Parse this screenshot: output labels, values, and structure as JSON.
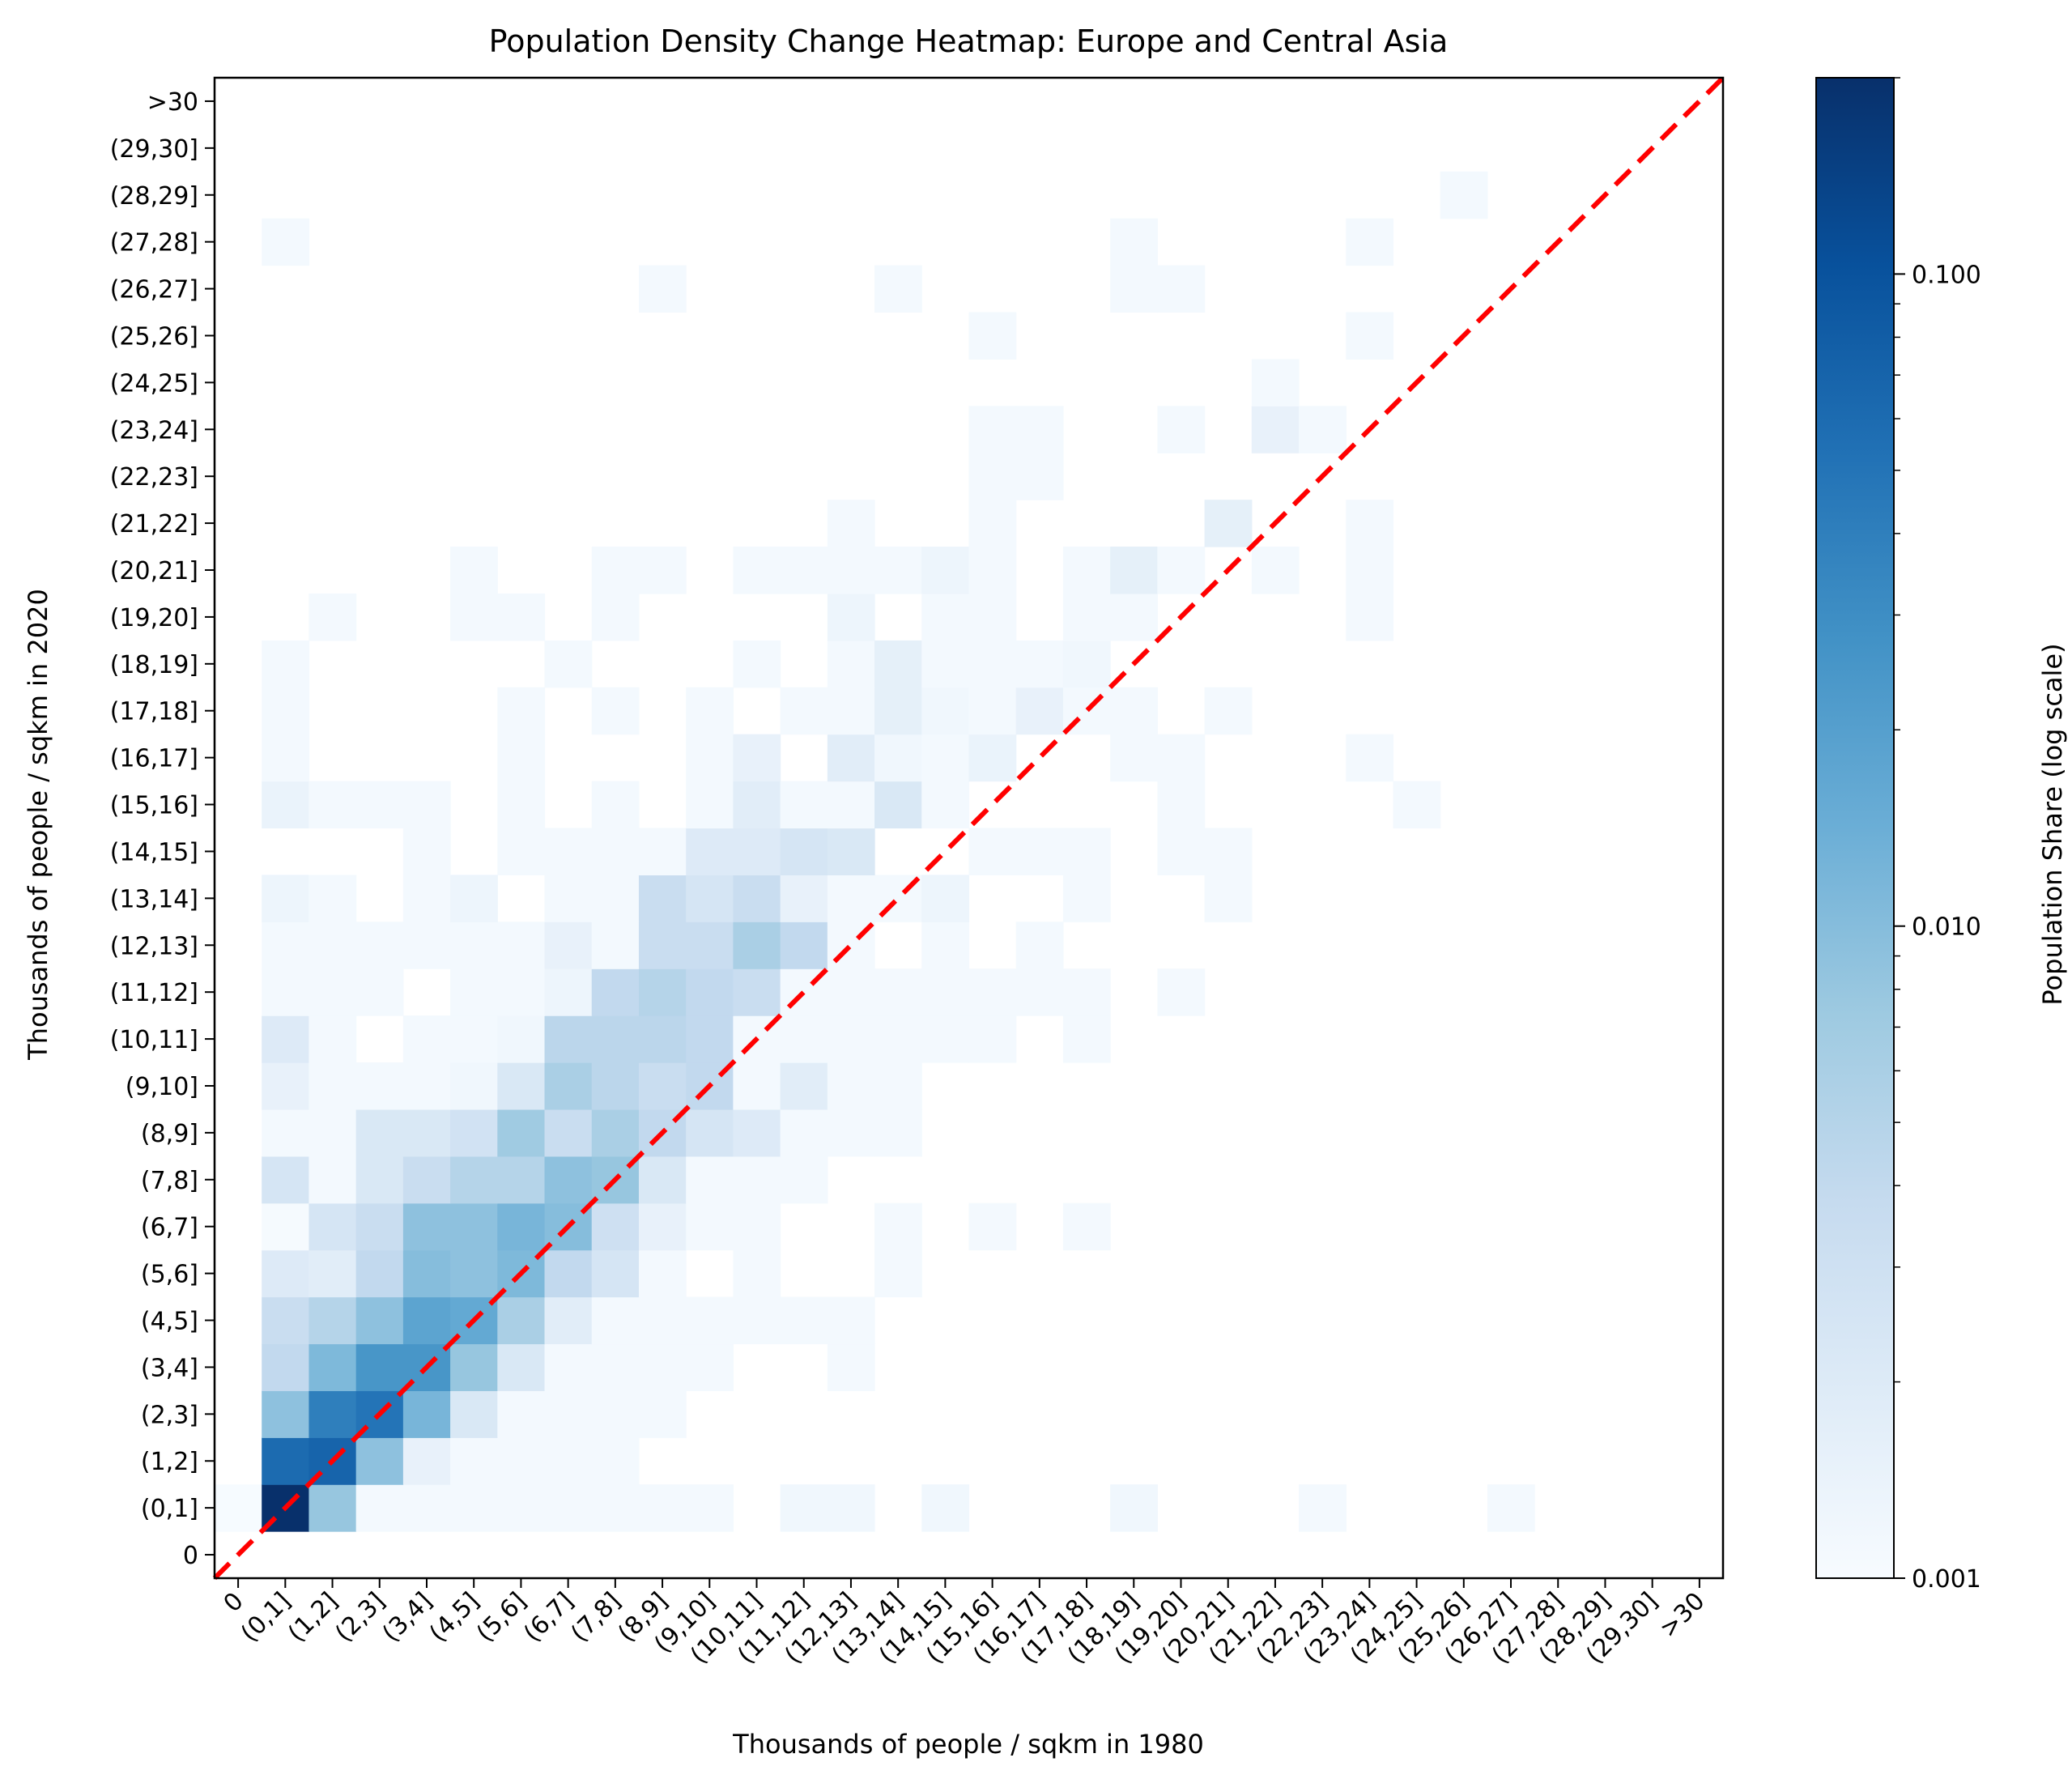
{
  "chart_data": {
    "type": "heatmap",
    "title": "Population Density Change Heatmap: Europe and Central Asia",
    "xlabel": "Thousands of people / sqkm in 1980",
    "ylabel": "Thousands of people / sqkm in 2020",
    "categories": [
      "0",
      "(0,1]",
      "(1,2]",
      "(2,3]",
      "(3,4]",
      "(4,5]",
      "(5,6]",
      "(6,7]",
      "(7,8]",
      "(8,9]",
      "(9,10]",
      "(10,11]",
      "(11,12]",
      "(12,13]",
      "(13,14]",
      "(14,15]",
      "(15,16]",
      "(16,17]",
      "(17,18]",
      "(18,19]",
      "(19,20]",
      "(20,21]",
      "(21,22]",
      "(22,23]",
      "(23,24]",
      "(24,25]",
      "(25,26]",
      "(26,27]",
      "(27,28]",
      "(28,29]",
      "(29,30]",
      ">30"
    ],
    "colorbar": {
      "label": "Population Share (log scale)",
      "scale": "log",
      "range": [
        0.001,
        0.2
      ],
      "ticks": [
        0.001,
        0.01,
        0.1
      ],
      "tick_labels": [
        "0.001",
        "0.010",
        "0.100"
      ],
      "colormap": "Blues"
    },
    "cells": [
      [
        0,
        1,
        0.00102
      ],
      [
        1,
        1,
        0.2
      ],
      [
        2,
        1,
        0.008
      ],
      [
        3,
        1,
        0.0011
      ],
      [
        4,
        1,
        0.0011
      ],
      [
        5,
        1,
        0.0011
      ],
      [
        6,
        1,
        0.0011
      ],
      [
        7,
        1,
        0.0011
      ],
      [
        8,
        1,
        0.0011
      ],
      [
        9,
        1,
        0.0011
      ],
      [
        10,
        1,
        0.0011
      ],
      [
        12,
        1,
        0.0012
      ],
      [
        13,
        1,
        0.0012
      ],
      [
        15,
        1,
        0.0012
      ],
      [
        19,
        1,
        0.0012
      ],
      [
        23,
        1,
        0.0011
      ],
      [
        27,
        1,
        0.0011
      ],
      [
        1,
        2,
        0.06
      ],
      [
        2,
        2,
        0.07
      ],
      [
        3,
        2,
        0.009
      ],
      [
        4,
        2,
        0.0015
      ],
      [
        5,
        2,
        0.0011
      ],
      [
        6,
        2,
        0.0011
      ],
      [
        7,
        2,
        0.0011
      ],
      [
        8,
        2,
        0.0011
      ],
      [
        1,
        3,
        0.009
      ],
      [
        2,
        3,
        0.04
      ],
      [
        3,
        3,
        0.05
      ],
      [
        4,
        3,
        0.012
      ],
      [
        5,
        3,
        0.0022
      ],
      [
        6,
        3,
        0.0011
      ],
      [
        7,
        3,
        0.0011
      ],
      [
        8,
        3,
        0.0011
      ],
      [
        9,
        3,
        0.0011
      ],
      [
        1,
        4,
        0.004
      ],
      [
        2,
        4,
        0.011
      ],
      [
        3,
        4,
        0.025
      ],
      [
        4,
        4,
        0.025
      ],
      [
        5,
        4,
        0.008
      ],
      [
        6,
        4,
        0.0022
      ],
      [
        7,
        4,
        0.0011
      ],
      [
        8,
        4,
        0.0011
      ],
      [
        9,
        4,
        0.0011
      ],
      [
        10,
        4,
        0.0011
      ],
      [
        13,
        4,
        0.0011
      ],
      [
        1,
        5,
        0.0035
      ],
      [
        2,
        5,
        0.005
      ],
      [
        3,
        5,
        0.009
      ],
      [
        4,
        5,
        0.018
      ],
      [
        5,
        5,
        0.016
      ],
      [
        6,
        5,
        0.006
      ],
      [
        7,
        5,
        0.0018
      ],
      [
        8,
        5,
        0.0011
      ],
      [
        9,
        5,
        0.0011
      ],
      [
        10,
        5,
        0.0011
      ],
      [
        11,
        5,
        0.0011
      ],
      [
        12,
        5,
        0.0011
      ],
      [
        13,
        5,
        0.0011
      ],
      [
        1,
        6,
        0.002
      ],
      [
        2,
        6,
        0.0018
      ],
      [
        3,
        6,
        0.004
      ],
      [
        4,
        6,
        0.01
      ],
      [
        5,
        6,
        0.009
      ],
      [
        6,
        6,
        0.011
      ],
      [
        7,
        6,
        0.004
      ],
      [
        8,
        6,
        0.0025
      ],
      [
        9,
        6,
        0.0011
      ],
      [
        11,
        6,
        0.0011
      ],
      [
        14,
        6,
        0.0011
      ],
      [
        1,
        7,
        0.00105
      ],
      [
        2,
        7,
        0.0025
      ],
      [
        3,
        7,
        0.0035
      ],
      [
        4,
        7,
        0.009
      ],
      [
        5,
        7,
        0.009
      ],
      [
        6,
        7,
        0.012
      ],
      [
        7,
        7,
        0.01
      ],
      [
        8,
        7,
        0.003
      ],
      [
        9,
        7,
        0.0015
      ],
      [
        10,
        7,
        0.0011
      ],
      [
        11,
        7,
        0.0011
      ],
      [
        14,
        7,
        0.0011
      ],
      [
        16,
        7,
        0.0011
      ],
      [
        18,
        7,
        0.0011
      ],
      [
        1,
        8,
        0.0025
      ],
      [
        2,
        8,
        0.0011
      ],
      [
        3,
        8,
        0.0022
      ],
      [
        4,
        8,
        0.0035
      ],
      [
        5,
        8,
        0.005
      ],
      [
        6,
        8,
        0.005
      ],
      [
        7,
        8,
        0.009
      ],
      [
        8,
        8,
        0.008
      ],
      [
        9,
        8,
        0.0022
      ],
      [
        10,
        8,
        0.0011
      ],
      [
        11,
        8,
        0.0011
      ],
      [
        12,
        8,
        0.0011
      ],
      [
        1,
        9,
        0.0011
      ],
      [
        2,
        9,
        0.0011
      ],
      [
        3,
        9,
        0.0022
      ],
      [
        4,
        9,
        0.0022
      ],
      [
        5,
        9,
        0.0028
      ],
      [
        6,
        9,
        0.007
      ],
      [
        7,
        9,
        0.0035
      ],
      [
        8,
        9,
        0.006
      ],
      [
        9,
        9,
        0.004
      ],
      [
        10,
        9,
        0.0025
      ],
      [
        11,
        9,
        0.002
      ],
      [
        12,
        9,
        0.0011
      ],
      [
        13,
        9,
        0.0011
      ],
      [
        14,
        9,
        0.0011
      ],
      [
        1,
        10,
        0.0015
      ],
      [
        2,
        10,
        0.0011
      ],
      [
        3,
        10,
        0.0011
      ],
      [
        4,
        10,
        0.0011
      ],
      [
        5,
        10,
        0.0012
      ],
      [
        6,
        10,
        0.0022
      ],
      [
        7,
        10,
        0.006
      ],
      [
        8,
        10,
        0.0045
      ],
      [
        9,
        10,
        0.0035
      ],
      [
        10,
        10,
        0.004
      ],
      [
        11,
        10,
        0.0011
      ],
      [
        12,
        10,
        0.0018
      ],
      [
        13,
        10,
        0.0011
      ],
      [
        14,
        10,
        0.0011
      ],
      [
        1,
        11,
        0.002
      ],
      [
        2,
        11,
        0.0011
      ],
      [
        4,
        11,
        0.0011
      ],
      [
        5,
        11,
        0.0011
      ],
      [
        6,
        11,
        0.0012
      ],
      [
        7,
        11,
        0.0045
      ],
      [
        8,
        11,
        0.0045
      ],
      [
        9,
        11,
        0.0045
      ],
      [
        10,
        11,
        0.004
      ],
      [
        11,
        11,
        0.0011
      ],
      [
        12,
        11,
        0.0011
      ],
      [
        13,
        11,
        0.0011
      ],
      [
        14,
        11,
        0.0011
      ],
      [
        15,
        11,
        0.0011
      ],
      [
        16,
        11,
        0.0011
      ],
      [
        18,
        11,
        0.0011
      ],
      [
        1,
        12,
        0.0011
      ],
      [
        2,
        12,
        0.0011
      ],
      [
        3,
        12,
        0.0011
      ],
      [
        5,
        12,
        0.0011
      ],
      [
        6,
        12,
        0.0011
      ],
      [
        7,
        12,
        0.0013
      ],
      [
        8,
        12,
        0.004
      ],
      [
        9,
        12,
        0.005
      ],
      [
        10,
        12,
        0.004
      ],
      [
        11,
        12,
        0.0035
      ],
      [
        12,
        12,
        0.0011
      ],
      [
        13,
        12,
        0.0011
      ],
      [
        14,
        12,
        0.0011
      ],
      [
        15,
        12,
        0.0011
      ],
      [
        16,
        12,
        0.0011
      ],
      [
        17,
        12,
        0.0011
      ],
      [
        18,
        12,
        0.0011
      ],
      [
        20,
        12,
        0.0011
      ],
      [
        1,
        13,
        0.0011
      ],
      [
        2,
        13,
        0.0011
      ],
      [
        3,
        13,
        0.0011
      ],
      [
        4,
        13,
        0.0011
      ],
      [
        5,
        13,
        0.0011
      ],
      [
        6,
        13,
        0.0011
      ],
      [
        7,
        13,
        0.0015
      ],
      [
        8,
        13,
        0.0011
      ],
      [
        9,
        13,
        0.0035
      ],
      [
        10,
        13,
        0.0035
      ],
      [
        11,
        13,
        0.006
      ],
      [
        12,
        13,
        0.004
      ],
      [
        13,
        13,
        0.0011
      ],
      [
        15,
        13,
        0.0011
      ],
      [
        17,
        13,
        0.0011
      ],
      [
        1,
        14,
        0.0013
      ],
      [
        2,
        14,
        0.0011
      ],
      [
        4,
        14,
        0.0011
      ],
      [
        5,
        14,
        0.0013
      ],
      [
        7,
        14,
        0.0011
      ],
      [
        8,
        14,
        0.0011
      ],
      [
        9,
        14,
        0.0035
      ],
      [
        10,
        14,
        0.0025
      ],
      [
        11,
        14,
        0.0035
      ],
      [
        12,
        14,
        0.0015
      ],
      [
        13,
        14,
        0.0011
      ],
      [
        14,
        14,
        0.0011
      ],
      [
        15,
        14,
        0.0013
      ],
      [
        18,
        14,
        0.0011
      ],
      [
        21,
        14,
        0.0011
      ],
      [
        4,
        15,
        0.0011
      ],
      [
        6,
        15,
        0.0011
      ],
      [
        7,
        15,
        0.0011
      ],
      [
        8,
        15,
        0.0011
      ],
      [
        9,
        15,
        0.0011
      ],
      [
        10,
        15,
        0.002
      ],
      [
        11,
        15,
        0.002
      ],
      [
        12,
        15,
        0.0025
      ],
      [
        13,
        15,
        0.0022
      ],
      [
        16,
        15,
        0.0011
      ],
      [
        17,
        15,
        0.0011
      ],
      [
        18,
        15,
        0.0011
      ],
      [
        20,
        15,
        0.0011
      ],
      [
        21,
        15,
        0.0011
      ],
      [
        1,
        16,
        0.0014
      ],
      [
        2,
        16,
        0.0011
      ],
      [
        3,
        16,
        0.0011
      ],
      [
        4,
        16,
        0.0011
      ],
      [
        6,
        16,
        0.0011
      ],
      [
        8,
        16,
        0.0011
      ],
      [
        10,
        16,
        0.0011
      ],
      [
        11,
        16,
        0.0018
      ],
      [
        12,
        16,
        0.0011
      ],
      [
        13,
        16,
        0.0011
      ],
      [
        14,
        16,
        0.0022
      ],
      [
        15,
        16,
        0.0011
      ],
      [
        20,
        16,
        0.0011
      ],
      [
        25,
        16,
        0.0011
      ],
      [
        1,
        17,
        0.0011
      ],
      [
        6,
        17,
        0.0011
      ],
      [
        10,
        17,
        0.0011
      ],
      [
        11,
        17,
        0.0015
      ],
      [
        13,
        17,
        0.0018
      ],
      [
        14,
        17,
        0.0012
      ],
      [
        15,
        17,
        0.0011
      ],
      [
        16,
        17,
        0.0014
      ],
      [
        19,
        17,
        0.0011
      ],
      [
        20,
        17,
        0.0011
      ],
      [
        24,
        17,
        0.0011
      ],
      [
        1,
        18,
        0.0011
      ],
      [
        6,
        18,
        0.0011
      ],
      [
        8,
        18,
        0.0011
      ],
      [
        10,
        18,
        0.0011
      ],
      [
        12,
        18,
        0.0011
      ],
      [
        13,
        18,
        0.0011
      ],
      [
        14,
        18,
        0.0016
      ],
      [
        15,
        18,
        0.0012
      ],
      [
        16,
        18,
        0.0011
      ],
      [
        17,
        18,
        0.0015
      ],
      [
        18,
        18,
        0.0011
      ],
      [
        19,
        18,
        0.0011
      ],
      [
        21,
        18,
        0.0011
      ],
      [
        1,
        19,
        0.0011
      ],
      [
        7,
        19,
        0.0011
      ],
      [
        11,
        19,
        0.0011
      ],
      [
        13,
        19,
        0.0011
      ],
      [
        14,
        19,
        0.0016
      ],
      [
        15,
        19,
        0.0011
      ],
      [
        16,
        19,
        0.0011
      ],
      [
        17,
        19,
        0.0011
      ],
      [
        18,
        19,
        0.0012
      ],
      [
        2,
        20,
        0.0011
      ],
      [
        5,
        20,
        0.0011
      ],
      [
        6,
        20,
        0.0011
      ],
      [
        8,
        20,
        0.0011
      ],
      [
        13,
        20,
        0.0013
      ],
      [
        15,
        20,
        0.0011
      ],
      [
        16,
        20,
        0.0011
      ],
      [
        18,
        20,
        0.0011
      ],
      [
        19,
        20,
        0.0011
      ],
      [
        24,
        20,
        0.0011
      ],
      [
        5,
        21,
        0.0011
      ],
      [
        8,
        21,
        0.0011
      ],
      [
        9,
        21,
        0.0011
      ],
      [
        11,
        21,
        0.0011
      ],
      [
        12,
        21,
        0.0011
      ],
      [
        13,
        21,
        0.0011
      ],
      [
        14,
        21,
        0.0011
      ],
      [
        15,
        21,
        0.0013
      ],
      [
        16,
        21,
        0.0011
      ],
      [
        18,
        21,
        0.0011
      ],
      [
        19,
        21,
        0.0016
      ],
      [
        20,
        21,
        0.0011
      ],
      [
        22,
        21,
        0.0011
      ],
      [
        24,
        21,
        0.0011
      ],
      [
        13,
        22,
        0.0011
      ],
      [
        16,
        22,
        0.0011
      ],
      [
        21,
        22,
        0.0016
      ],
      [
        24,
        22,
        0.0011
      ],
      [
        16,
        23,
        0.0011
      ],
      [
        17,
        23,
        0.0011
      ],
      [
        16,
        24,
        0.0011
      ],
      [
        17,
        24,
        0.0011
      ],
      [
        20,
        24,
        0.0011
      ],
      [
        22,
        24,
        0.0015
      ],
      [
        23,
        24,
        0.0011
      ],
      [
        22,
        25,
        0.0011
      ],
      [
        16,
        26,
        0.0011
      ],
      [
        24,
        26,
        0.0011
      ],
      [
        9,
        27,
        0.0011
      ],
      [
        14,
        27,
        0.0011
      ],
      [
        19,
        27,
        0.0011
      ],
      [
        20,
        27,
        0.0011
      ],
      [
        1,
        28,
        0.0011
      ],
      [
        19,
        28,
        0.0011
      ],
      [
        24,
        28,
        0.0011
      ],
      [
        26,
        29,
        0.0011
      ]
    ],
    "reference_line": {
      "style": "dashed",
      "color": "#ff0000",
      "from": [
        "0",
        "0"
      ],
      "to": [
        ">30",
        ">30"
      ]
    },
    "grid": false
  }
}
